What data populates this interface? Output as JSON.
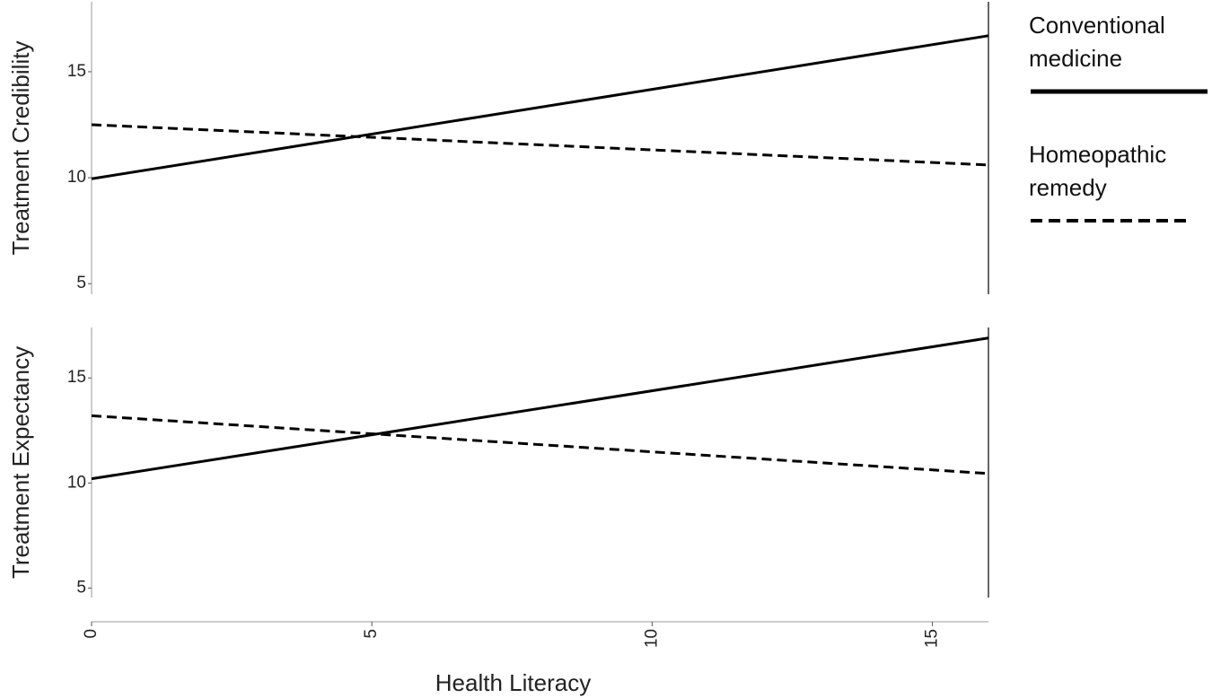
{
  "chart_data": [
    {
      "type": "line",
      "ylabel": "Treatment Credibility",
      "x": [
        0,
        16
      ],
      "xlim": [
        0,
        16
      ],
      "ylim": [
        4.5,
        18.3
      ],
      "yticks": [
        5,
        10,
        15
      ],
      "series": [
        {
          "name": "Conventional medicine",
          "color": "#000000",
          "dash": false,
          "values": [
            9.95,
            16.7
          ]
        },
        {
          "name": "Homeopathic remedy",
          "color": "#000000",
          "dash": true,
          "values": [
            12.5,
            10.6
          ]
        }
      ]
    },
    {
      "type": "line",
      "ylabel": "Treatment Expectancy",
      "xlabel": "Health Literacy",
      "x": [
        0,
        16
      ],
      "xlim": [
        0,
        16
      ],
      "xticks": [
        0,
        5,
        10,
        15
      ],
      "ylim": [
        4.55,
        17.4
      ],
      "yticks": [
        5,
        10,
        15
      ],
      "series": [
        {
          "name": "Conventional medicine",
          "color": "#000000",
          "dash": false,
          "values": [
            10.2,
            16.9
          ]
        },
        {
          "name": "Homeopathic remedy",
          "color": "#000000",
          "dash": true,
          "values": [
            13.2,
            10.45
          ]
        }
      ]
    }
  ]
}
